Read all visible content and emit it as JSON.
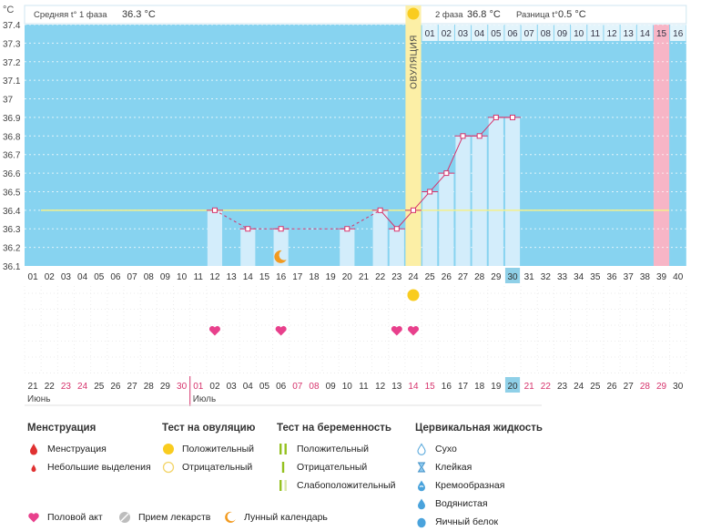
{
  "header": {
    "unit": "°C",
    "phase1_label": "Средняя t° 1 фаза",
    "phase1_value": "36.3 °C",
    "phase2_label": "2 фаза",
    "phase2_value": "36.8 °C",
    "diff_label": "Разница t°",
    "diff_value": "0.5 °C",
    "ovulation_label": "ОВУЛЯЦИЯ"
  },
  "colors": {
    "chart_bg": "#87d3f0",
    "bar": "#d3edfb",
    "ovulation": "#fcefa6",
    "period": "#f7b5c6",
    "line": "#d6336c",
    "coverline": "#f4f08a",
    "phase2_highlight": "#8fd0e8"
  },
  "chart_data": {
    "type": "line",
    "ylim": [
      36.1,
      37.4
    ],
    "y_ticks": [
      "37.4",
      "37.3",
      "37.2",
      "37.1",
      "37",
      "36.9",
      "36.8",
      "36.7",
      "36.6",
      "36.5",
      "36.4",
      "36.3",
      "36.2",
      "36.1"
    ],
    "cycle_days": [
      "01",
      "02",
      "03",
      "04",
      "05",
      "06",
      "07",
      "08",
      "09",
      "10",
      "11",
      "12",
      "13",
      "14",
      "15",
      "16",
      "17",
      "18",
      "19",
      "20",
      "21",
      "22",
      "23",
      "24",
      "25",
      "26",
      "27",
      "28",
      "29",
      "30",
      "31",
      "32",
      "33",
      "34",
      "35",
      "36",
      "37",
      "38",
      "39",
      "40"
    ],
    "dpo_labels": [
      "01",
      "02",
      "03",
      "04",
      "05",
      "06",
      "07",
      "08",
      "09",
      "10",
      "11",
      "12",
      "13",
      "14",
      "15",
      "16"
    ],
    "dates": [
      "21",
      "22",
      "23",
      "24",
      "25",
      "26",
      "27",
      "28",
      "29",
      "30",
      "01",
      "02",
      "03",
      "04",
      "05",
      "06",
      "07",
      "08",
      "09",
      "10",
      "11",
      "12",
      "13",
      "14",
      "15",
      "16",
      "17",
      "18",
      "19",
      "20",
      "21",
      "22",
      "23",
      "24",
      "25",
      "26",
      "27",
      "28",
      "29",
      "30"
    ],
    "red_date_indices": [
      2,
      3,
      9,
      10,
      16,
      17,
      23,
      24,
      30,
      31,
      37,
      38
    ],
    "months": [
      {
        "name": "Июнь",
        "start_index": 0
      },
      {
        "name": "Июль",
        "start_index": 10
      }
    ],
    "temps": [
      {
        "day": 12,
        "value": 36.4
      },
      {
        "day": 14,
        "value": 36.3
      },
      {
        "day": 16,
        "value": 36.3
      },
      {
        "day": 20,
        "value": 36.3
      },
      {
        "day": 22,
        "value": 36.4
      },
      {
        "day": 23,
        "value": 36.3
      },
      {
        "day": 24,
        "value": 36.4
      },
      {
        "day": 25,
        "value": 36.5
      },
      {
        "day": 26,
        "value": 36.6
      },
      {
        "day": 27,
        "value": 36.8
      },
      {
        "day": 28,
        "value": 36.8
      },
      {
        "day": 29,
        "value": 36.9
      },
      {
        "day": 30,
        "value": 36.9
      }
    ],
    "coverline": 36.4,
    "ovulation_day": 24,
    "period_day": 39,
    "today_day": 30,
    "moon_day": 16,
    "intercourse_days": [
      12,
      16,
      23,
      24
    ],
    "ovulation_test_positive_days": [
      24
    ]
  },
  "legend": {
    "menstruation": {
      "title": "Менструация",
      "items": [
        {
          "label": "Менструация",
          "icon": "blood-drop-icon"
        },
        {
          "label": "Небольшие выделения",
          "icon": "small-drop-icon"
        }
      ]
    },
    "ovulation_test": {
      "title": "Тест на овуляцию",
      "items": [
        {
          "label": "Положительный",
          "icon": "yellow-circle-icon"
        },
        {
          "label": "Отрицательный",
          "icon": "empty-circle-icon"
        }
      ]
    },
    "pregnancy_test": {
      "title": "Тест на беременность",
      "items": [
        {
          "label": "Положительный",
          "icon": "two-lines-icon"
        },
        {
          "label": "Отрицательный",
          "icon": "one-line-icon"
        },
        {
          "label": "Слабоположительный",
          "icon": "faint-lines-icon"
        }
      ]
    },
    "cervical": {
      "title": "Цервикальная жидкость",
      "items": [
        {
          "label": "Сухо",
          "icon": "dry-icon"
        },
        {
          "label": "Клейкая",
          "icon": "sticky-icon"
        },
        {
          "label": "Кремообразная",
          "icon": "creamy-icon"
        },
        {
          "label": "Водянистая",
          "icon": "watery-icon"
        },
        {
          "label": "Яичный белок",
          "icon": "egg-white-icon"
        }
      ]
    },
    "bottom": [
      {
        "label": "Половой акт",
        "icon": "heart-icon"
      },
      {
        "label": "Прием лекарств",
        "icon": "pill-icon"
      },
      {
        "label": "Лунный календарь",
        "icon": "moon-icon"
      }
    ]
  }
}
